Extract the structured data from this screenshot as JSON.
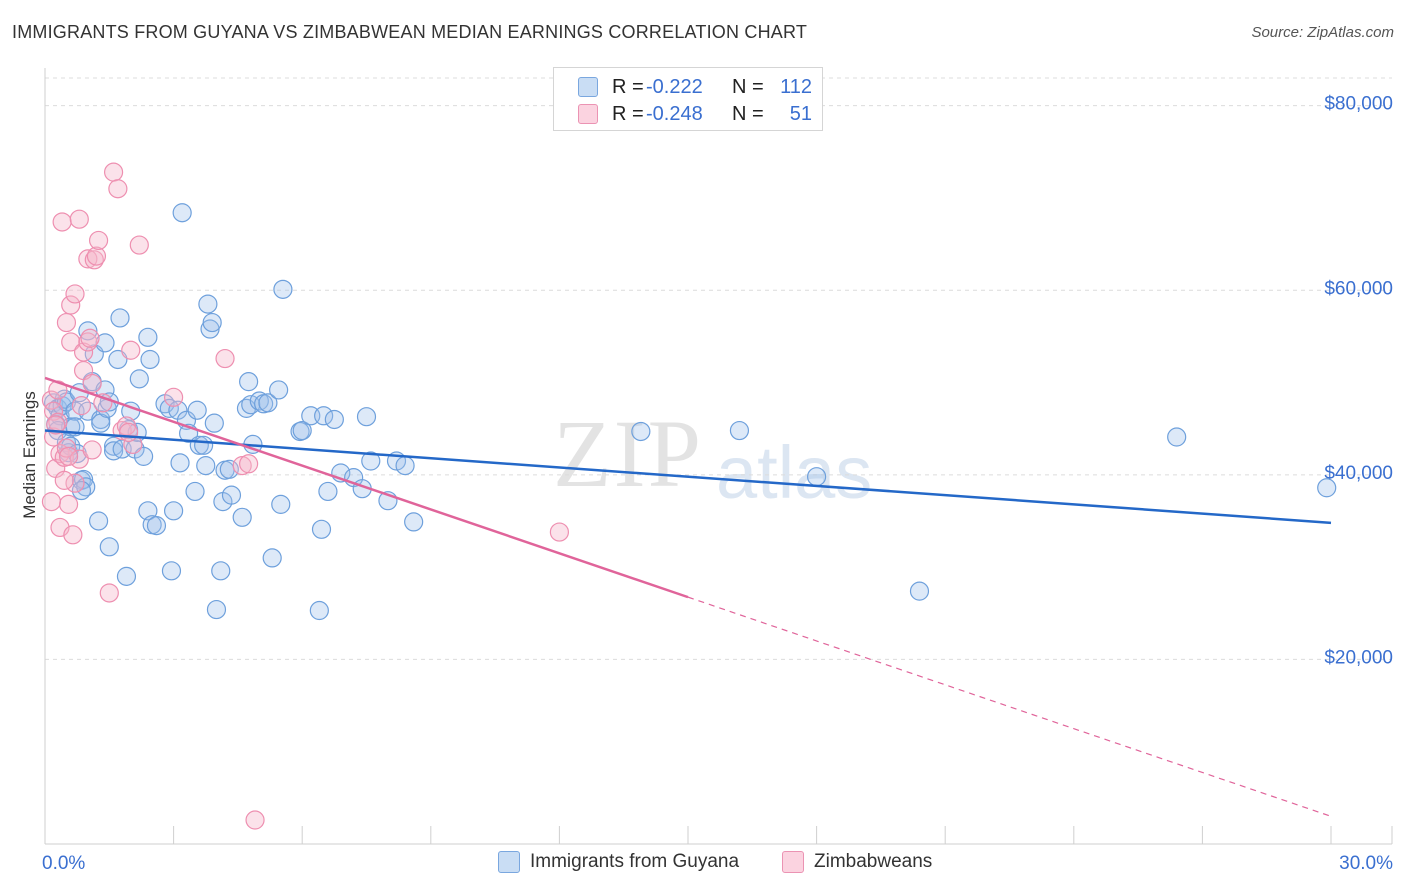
{
  "title": "IMMIGRANTS FROM GUYANA VS ZIMBABWEAN MEDIAN EARNINGS CORRELATION CHART",
  "source": "Source: ZipAtlas.com",
  "watermark": {
    "zip": "ZIP",
    "atlas": "atlas"
  },
  "legend_top": [
    {
      "r_label": "R =",
      "r_value": "-0.222",
      "n_label": "N =",
      "n_value": "112",
      "color": "#9ec1ea"
    },
    {
      "r_label": "R =",
      "r_value": "-0.248",
      "n_label": "N =",
      "n_value": "51",
      "color": "#f5b6cb"
    }
  ],
  "legend_bottom": [
    {
      "label": "Immigrants from Guyana",
      "color": "#9ec1ea"
    },
    {
      "label": "Zimbabweans",
      "color": "#f5b6cb"
    }
  ],
  "chart_data": {
    "type": "scatter",
    "title": "IMMIGRANTS FROM GUYANA VS ZIMBABWEAN MEDIAN EARNINGS CORRELATION CHART",
    "xlabel": "",
    "ylabel": "Median Earnings",
    "xlim": [
      0,
      30
    ],
    "ylim": [
      0,
      83000
    ],
    "x_tick_labels": [
      "0.0%",
      "30.0%"
    ],
    "y_ticks": [
      20000,
      40000,
      60000,
      80000
    ],
    "y_tick_labels": [
      "$20,000",
      "$40,000",
      "$60,000",
      "$80,000"
    ],
    "grid": true,
    "series": [
      {
        "name": "Immigrants from Guyana",
        "color": "#6ea0dc",
        "trend": {
          "x": [
            0,
            30
          ],
          "y": [
            44800,
            34800
          ],
          "dash_from": null,
          "color": "#2468c8"
        },
        "points": [
          [
            0.2,
            47800
          ],
          [
            0.3,
            47200
          ],
          [
            0.35,
            46400
          ],
          [
            0.4,
            47500
          ],
          [
            0.45,
            48200
          ],
          [
            0.5,
            47900
          ],
          [
            0.25,
            45500
          ],
          [
            0.3,
            44800
          ],
          [
            0.5,
            43500
          ],
          [
            0.55,
            42400
          ],
          [
            0.6,
            43100
          ],
          [
            0.6,
            45200
          ],
          [
            0.7,
            46900
          ],
          [
            0.7,
            45200
          ],
          [
            0.75,
            42300
          ],
          [
            0.8,
            48900
          ],
          [
            0.85,
            39400
          ],
          [
            0.9,
            39500
          ],
          [
            0.95,
            38700
          ],
          [
            0.85,
            38300
          ],
          [
            1.0,
            46900
          ],
          [
            1.0,
            55600
          ],
          [
            1.1,
            50100
          ],
          [
            1.15,
            53100
          ],
          [
            1.25,
            35000
          ],
          [
            1.3,
            46000
          ],
          [
            1.3,
            45600
          ],
          [
            1.4,
            54300
          ],
          [
            1.4,
            49200
          ],
          [
            1.45,
            47200
          ],
          [
            1.5,
            32200
          ],
          [
            1.5,
            47900
          ],
          [
            1.6,
            43100
          ],
          [
            1.6,
            42600
          ],
          [
            1.7,
            52500
          ],
          [
            1.75,
            57000
          ],
          [
            1.8,
            42800
          ],
          [
            1.9,
            29000
          ],
          [
            1.95,
            44900
          ],
          [
            2.0,
            46900
          ],
          [
            2.1,
            42800
          ],
          [
            2.15,
            44600
          ],
          [
            2.2,
            50400
          ],
          [
            2.3,
            42000
          ],
          [
            2.4,
            36100
          ],
          [
            2.4,
            54900
          ],
          [
            2.45,
            52500
          ],
          [
            2.5,
            34600
          ],
          [
            2.6,
            34500
          ],
          [
            2.8,
            47700
          ],
          [
            2.9,
            47200
          ],
          [
            2.95,
            29600
          ],
          [
            3.0,
            36100
          ],
          [
            3.1,
            47000
          ],
          [
            3.15,
            41300
          ],
          [
            3.2,
            68400
          ],
          [
            3.3,
            45900
          ],
          [
            3.35,
            44500
          ],
          [
            3.5,
            38200
          ],
          [
            3.55,
            47000
          ],
          [
            3.6,
            43200
          ],
          [
            3.7,
            43200
          ],
          [
            3.75,
            41000
          ],
          [
            3.8,
            58500
          ],
          [
            3.85,
            55800
          ],
          [
            3.9,
            56500
          ],
          [
            3.95,
            45600
          ],
          [
            4.0,
            25400
          ],
          [
            4.1,
            29600
          ],
          [
            4.15,
            37100
          ],
          [
            4.2,
            40500
          ],
          [
            4.3,
            40600
          ],
          [
            4.35,
            37800
          ],
          [
            4.6,
            35400
          ],
          [
            4.7,
            47200
          ],
          [
            4.75,
            50100
          ],
          [
            4.8,
            47600
          ],
          [
            4.85,
            43300
          ],
          [
            5.0,
            48000
          ],
          [
            5.1,
            47700
          ],
          [
            5.2,
            47800
          ],
          [
            5.3,
            31000
          ],
          [
            5.45,
            49200
          ],
          [
            5.5,
            36800
          ],
          [
            5.55,
            60100
          ],
          [
            5.95,
            44700
          ],
          [
            6.0,
            44800
          ],
          [
            6.2,
            46400
          ],
          [
            6.4,
            25300
          ],
          [
            6.45,
            34100
          ],
          [
            6.5,
            46400
          ],
          [
            6.6,
            38200
          ],
          [
            6.75,
            46000
          ],
          [
            6.9,
            40200
          ],
          [
            7.2,
            39700
          ],
          [
            7.4,
            38500
          ],
          [
            7.5,
            46300
          ],
          [
            7.6,
            41500
          ],
          [
            8.0,
            37200
          ],
          [
            8.2,
            41500
          ],
          [
            8.4,
            41000
          ],
          [
            8.6,
            34900
          ],
          [
            13.9,
            44700
          ],
          [
            16.2,
            44800
          ],
          [
            18.0,
            39800
          ],
          [
            20.4,
            27400
          ],
          [
            26.4,
            44100
          ],
          [
            29.9,
            38600
          ]
        ]
      },
      {
        "name": "Zimbabweans",
        "color": "#ee8fb0",
        "trend": {
          "x": [
            0,
            30
          ],
          "y": [
            50500,
            3000
          ],
          "dash_from": 15,
          "color": "#e0649a"
        },
        "points": [
          [
            0.15,
            48100
          ],
          [
            0.2,
            46900
          ],
          [
            0.2,
            44100
          ],
          [
            0.25,
            40700
          ],
          [
            0.3,
            49200
          ],
          [
            0.3,
            45700
          ],
          [
            0.35,
            42300
          ],
          [
            0.35,
            34300
          ],
          [
            0.4,
            67400
          ],
          [
            0.45,
            41900
          ],
          [
            0.5,
            56500
          ],
          [
            0.5,
            42900
          ],
          [
            0.55,
            36800
          ],
          [
            0.6,
            58400
          ],
          [
            0.6,
            54400
          ],
          [
            0.65,
            33500
          ],
          [
            0.7,
            59600
          ],
          [
            0.7,
            39100
          ],
          [
            0.8,
            67700
          ],
          [
            0.8,
            41700
          ],
          [
            0.9,
            51300
          ],
          [
            0.9,
            53300
          ],
          [
            1.0,
            54400
          ],
          [
            1.0,
            63400
          ],
          [
            1.05,
            54800
          ],
          [
            1.1,
            49900
          ],
          [
            1.1,
            42700
          ],
          [
            1.15,
            63300
          ],
          [
            1.2,
            63700
          ],
          [
            1.25,
            65400
          ],
          [
            1.5,
            27200
          ],
          [
            1.6,
            72800
          ],
          [
            1.7,
            71000
          ],
          [
            1.8,
            44800
          ],
          [
            1.9,
            45300
          ],
          [
            2.0,
            53500
          ],
          [
            2.05,
            43300
          ],
          [
            2.2,
            64900
          ],
          [
            3.0,
            48400
          ],
          [
            4.2,
            52600
          ],
          [
            4.6,
            41000
          ],
          [
            4.75,
            41200
          ],
          [
            4.9,
            2600
          ],
          [
            0.15,
            37100
          ],
          [
            0.25,
            45400
          ],
          [
            0.45,
            39400
          ],
          [
            0.55,
            42000
          ],
          [
            0.85,
            47500
          ],
          [
            1.35,
            47800
          ],
          [
            1.95,
            44600
          ],
          [
            12.0,
            33800
          ]
        ]
      }
    ]
  }
}
